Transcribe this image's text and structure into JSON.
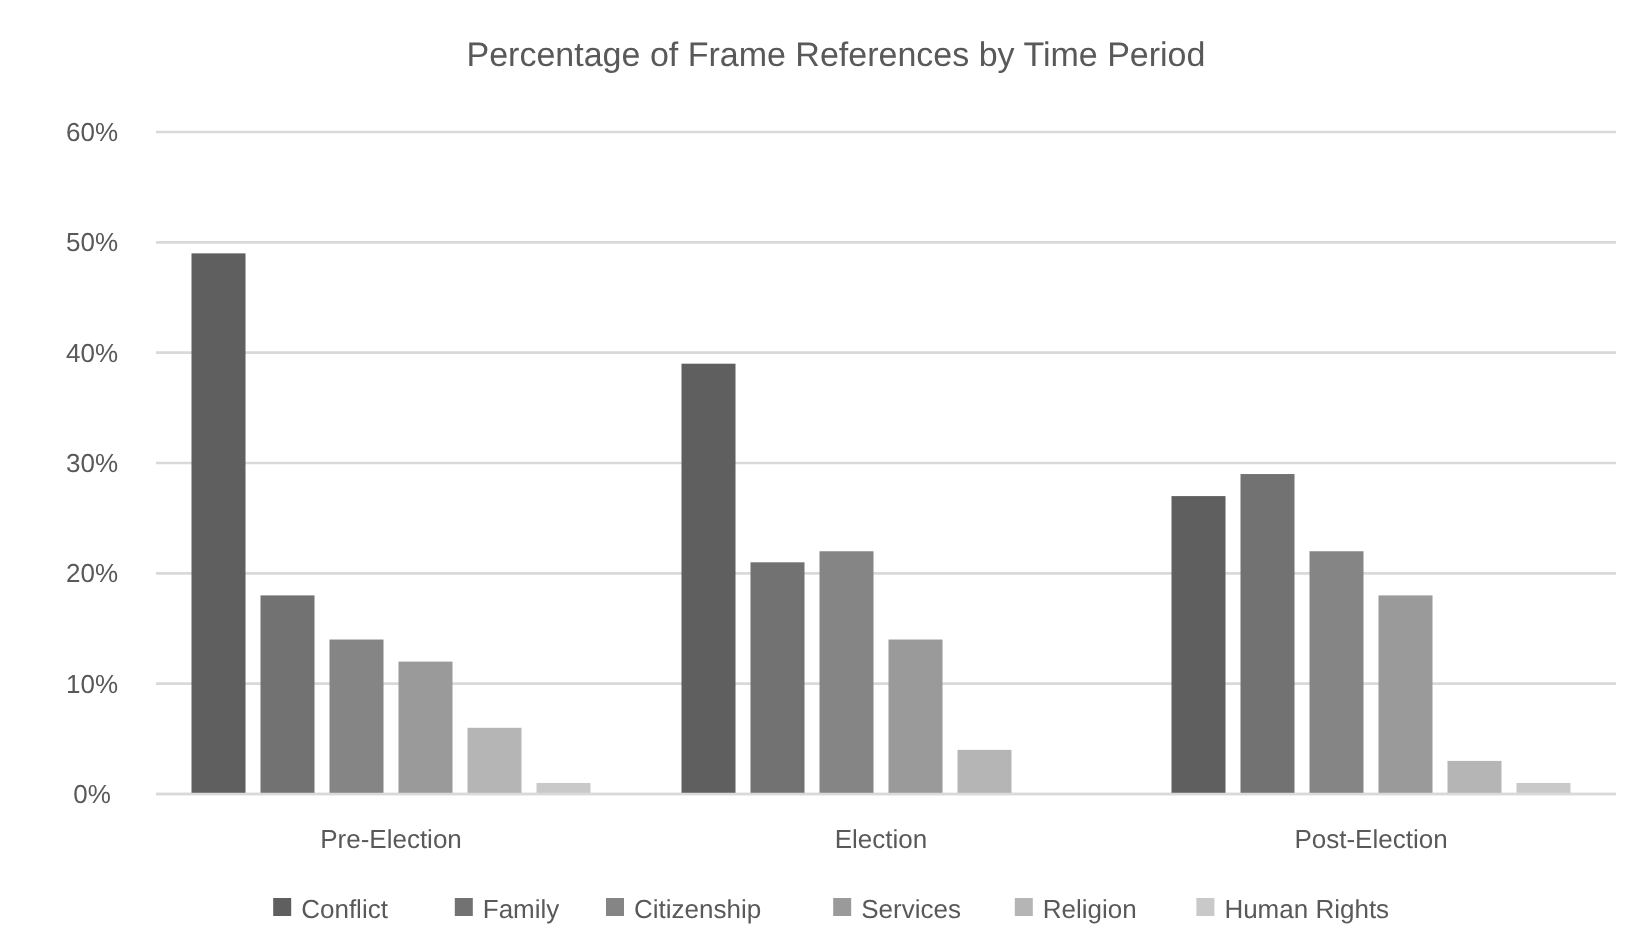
{
  "chart_data": {
    "type": "bar",
    "title": "Percentage of Frame References by Time Period",
    "categories": [
      "Pre-Election",
      "Election",
      "Post-Election"
    ],
    "series": [
      {
        "name": "Conflict",
        "color": "#5f5f5f",
        "values": [
          49,
          39,
          27
        ]
      },
      {
        "name": "Family",
        "color": "#727272",
        "values": [
          18,
          21,
          29
        ]
      },
      {
        "name": "Citizenship",
        "color": "#858585",
        "values": [
          14,
          22,
          22
        ]
      },
      {
        "name": "Services",
        "color": "#9a9a9a",
        "values": [
          12,
          14,
          18
        ]
      },
      {
        "name": "Religion",
        "color": "#b5b5b5",
        "values": [
          6,
          4,
          3
        ]
      },
      {
        "name": "Human Rights",
        "color": "#c9c9c9",
        "values": [
          1,
          0,
          1
        ]
      }
    ],
    "ylim": [
      0,
      60
    ],
    "yticks": [
      {
        "value": 0,
        "label": "0%"
      },
      {
        "value": 10,
        "label": "10%"
      },
      {
        "value": 20,
        "label": "20%"
      },
      {
        "value": 30,
        "label": "30%"
      },
      {
        "value": 40,
        "label": "40%"
      },
      {
        "value": 50,
        "label": "50%"
      },
      {
        "value": 60,
        "label": "60%"
      }
    ],
    "grid": "y",
    "legend": "bottom"
  }
}
